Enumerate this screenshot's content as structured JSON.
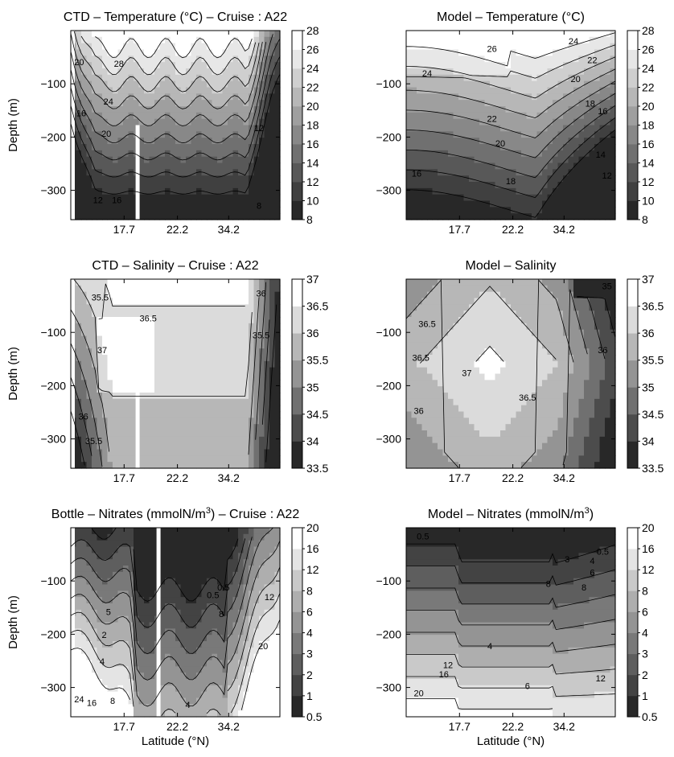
{
  "chart_data": [
    {
      "type": "contour",
      "title": "CTD – Temperature (°C) – Cruise : A22",
      "ylabel": "Depth (m)",
      "xlabel": "",
      "xticks": [
        "17.7",
        "22.2",
        "34.2"
      ],
      "yticks": [
        -100,
        -200,
        -300
      ],
      "ylim": [
        -355,
        0
      ],
      "colorbar": [
        "8",
        "10",
        "12",
        "14",
        "16",
        "18",
        "20",
        "22",
        "24",
        "26",
        "28"
      ],
      "levels": [
        8,
        10,
        12,
        14,
        16,
        18,
        20,
        22,
        24,
        26,
        28
      ],
      "contour_labels": [
        "20",
        "28",
        "24",
        "20",
        "16",
        "12",
        "16",
        "12",
        "8"
      ]
    },
    {
      "type": "contour",
      "title": "Model – Temperature (°C)",
      "ylabel": "",
      "xlabel": "",
      "xticks": [
        "17.7",
        "22.2",
        "34.2"
      ],
      "yticks": [
        -100,
        -200,
        -300
      ],
      "ylim": [
        -355,
        0
      ],
      "colorbar": [
        "8",
        "10",
        "12",
        "14",
        "16",
        "18",
        "20",
        "22",
        "24",
        "26",
        "28"
      ],
      "levels": [
        8,
        10,
        12,
        14,
        16,
        18,
        20,
        22,
        24,
        26,
        28
      ],
      "contour_labels": [
        "24",
        "26",
        "24",
        "22",
        "20",
        "18",
        "16",
        "22",
        "20",
        "18",
        "16",
        "14",
        "12"
      ]
    },
    {
      "type": "contour",
      "title": "CTD – Salinity – Cruise : A22",
      "ylabel": "Depth (m)",
      "xlabel": "",
      "xticks": [
        "17.7",
        "22.2",
        "34.2"
      ],
      "yticks": [
        -100,
        -200,
        -300
      ],
      "ylim": [
        -355,
        0
      ],
      "colorbar": [
        "33.5",
        "34",
        "34.5",
        "35",
        "35.5",
        "36",
        "36.5",
        "37"
      ],
      "levels": [
        33.5,
        34,
        34.5,
        35,
        35.5,
        36,
        36.5,
        37
      ],
      "contour_labels": [
        "35.5",
        "36.5",
        "37",
        "36",
        "35.5",
        "35.5",
        "36"
      ]
    },
    {
      "type": "contour",
      "title": "Model – Salinity",
      "ylabel": "",
      "xlabel": "",
      "xticks": [
        "17.7",
        "22.2",
        "34.2"
      ],
      "yticks": [
        -100,
        -200,
        -300
      ],
      "ylim": [
        -355,
        0
      ],
      "colorbar": [
        "33.5",
        "34",
        "34.5",
        "35",
        "35.5",
        "36",
        "36.5",
        "37"
      ],
      "levels": [
        33.5,
        34,
        34.5,
        35,
        35.5,
        36,
        36.5,
        37
      ],
      "contour_labels": [
        "36.5",
        "36.5",
        "37",
        "36.5",
        "36",
        "36",
        "35"
      ]
    },
    {
      "type": "contour",
      "title": "Bottle – Nitrates (mmolN/m",
      "title_sup": "3",
      "title_end": ") – Cruise : A22",
      "ylabel": "Depth (m)",
      "xlabel": "Latitude (°N)",
      "xticks": [
        "17.7",
        "22.2",
        "34.2"
      ],
      "yticks": [
        -100,
        -200,
        -300
      ],
      "ylim": [
        -355,
        0
      ],
      "colorbar": [
        "0.5",
        "1",
        "2",
        "3",
        "4",
        "6",
        "8",
        "12",
        "16",
        "20"
      ],
      "levels": [
        0.5,
        1,
        2,
        3,
        4,
        6,
        8,
        12,
        16,
        20
      ],
      "contour_labels": [
        "0.5",
        "5",
        "2",
        "4",
        "8",
        "16",
        "24",
        "4",
        "8",
        "0.5",
        "12",
        "20"
      ]
    },
    {
      "type": "contour",
      "title": "Model – Nitrates (mmolN/m",
      "title_sup": "3",
      "title_end": ")",
      "ylabel": "",
      "xlabel": "Latitude (°N)",
      "xticks": [
        "17.7",
        "22.2",
        "34.2"
      ],
      "yticks": [
        -100,
        -200,
        -300
      ],
      "ylim": [
        -355,
        0
      ],
      "colorbar": [
        "0.5",
        "1",
        "2",
        "3",
        "4",
        "6",
        "8",
        "12",
        "16",
        "20"
      ],
      "levels": [
        0.5,
        1,
        2,
        3,
        4,
        6,
        8,
        12,
        16,
        20
      ],
      "contour_labels": [
        "0.5",
        "0.5",
        "3",
        "4",
        "6",
        "8",
        "8",
        "4",
        "6",
        "12",
        "12",
        "16",
        "20"
      ]
    }
  ]
}
